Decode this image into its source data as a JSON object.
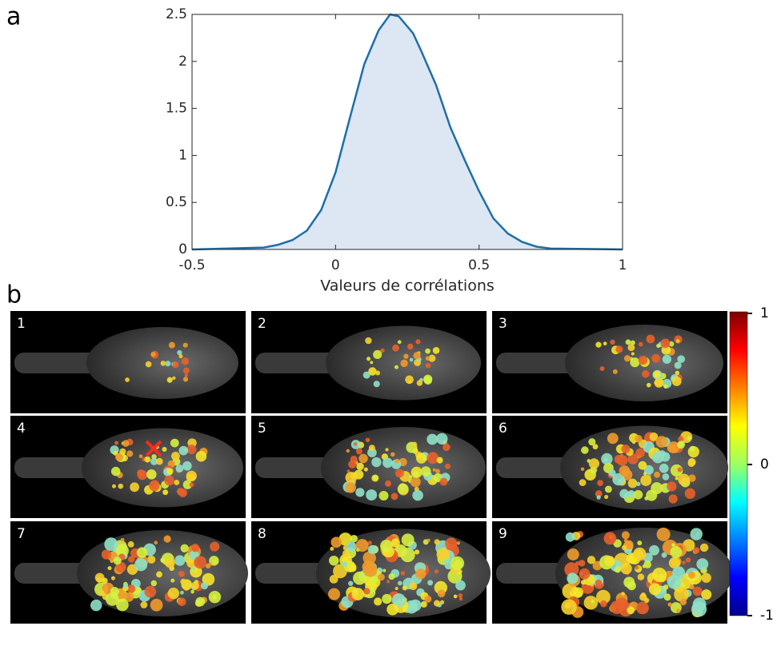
{
  "panel_labels": [
    "a",
    "b"
  ],
  "chart_data": {
    "type": "line",
    "x": [
      -0.5,
      -0.25,
      -0.2,
      -0.15,
      -0.1,
      -0.05,
      0,
      0.05,
      0.1,
      0.15,
      0.19,
      0.22,
      0.27,
      0.3,
      0.35,
      0.4,
      0.45,
      0.5,
      0.55,
      0.6,
      0.65,
      0.7,
      0.75,
      1
    ],
    "values": [
      0,
      0.02,
      0.05,
      0.1,
      0.2,
      0.42,
      0.82,
      1.4,
      1.97,
      2.33,
      2.5,
      2.48,
      2.3,
      2.1,
      1.75,
      1.3,
      0.95,
      0.62,
      0.33,
      0.17,
      0.08,
      0.03,
      0.01,
      0
    ],
    "color": "#1f6fa8",
    "fill": "#dde6f3",
    "xlim": [
      -0.5,
      1
    ],
    "xticks": [
      -0.5,
      0,
      0.5,
      1
    ],
    "ylim": [
      0,
      2.5
    ],
    "yticks": [
      0,
      0.5,
      1,
      1.5,
      2,
      2.5
    ],
    "xlabel": "Valeurs de corrélations"
  },
  "images": {
    "labels": [
      "1",
      "2",
      "3",
      "4",
      "5",
      "6",
      "7",
      "8",
      "9"
    ]
  },
  "colorbar": {
    "lim": [
      -1,
      1
    ],
    "ticks": [
      -1,
      0,
      1
    ]
  }
}
